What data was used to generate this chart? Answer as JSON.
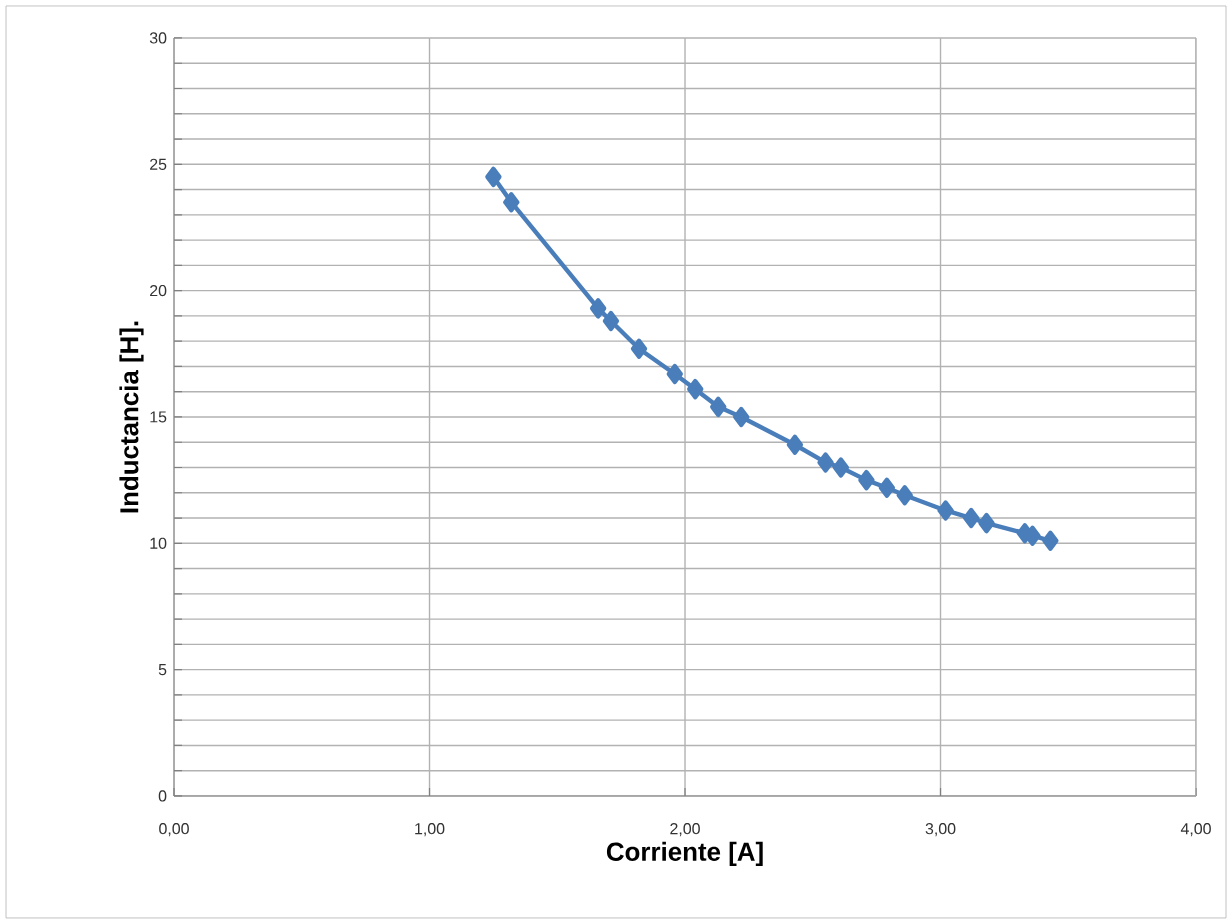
{
  "chart_data": {
    "type": "line",
    "xlabel": "Corriente [A]",
    "ylabel": "Inductancia [H].",
    "x": [
      1.25,
      1.32,
      1.66,
      1.71,
      1.82,
      1.96,
      2.04,
      2.13,
      2.22,
      2.43,
      2.55,
      2.61,
      2.71,
      2.79,
      2.86,
      3.02,
      3.12,
      3.18,
      3.33,
      3.36,
      3.43
    ],
    "series": [
      {
        "color": "#4a7ebb",
        "values": [
          24.5,
          23.5,
          19.3,
          18.8,
          17.7,
          16.7,
          16.1,
          15.4,
          15.0,
          13.9,
          13.2,
          13.0,
          12.5,
          12.2,
          11.9,
          11.3,
          11.0,
          10.8,
          10.4,
          10.3,
          10.1
        ]
      }
    ],
    "xlim": [
      0,
      4
    ],
    "ylim": [
      0,
      30
    ],
    "xticks": [
      {
        "value": 0,
        "label": "0,00"
      },
      {
        "value": 1,
        "label": "1,00"
      },
      {
        "value": 2,
        "label": "2,00"
      },
      {
        "value": 3,
        "label": "3,00"
      },
      {
        "value": 4,
        "label": "4,00"
      }
    ],
    "yticks": [
      0,
      {
        "value": 1,
        "label": null
      },
      {
        "value": 2,
        "label": null
      },
      {
        "value": 3,
        "label": null
      },
      {
        "value": 4,
        "label": null
      },
      5,
      {
        "value": 6,
        "label": null
      },
      {
        "value": 7,
        "label": null
      },
      {
        "value": 8,
        "label": null
      },
      {
        "value": 9,
        "label": null
      },
      10,
      {
        "value": 11,
        "label": null
      },
      {
        "value": 12,
        "label": null
      },
      {
        "value": 13,
        "label": null
      },
      {
        "value": 14,
        "label": null
      },
      15,
      {
        "value": 16,
        "label": null
      },
      {
        "value": 17,
        "label": null
      },
      {
        "value": 18,
        "label": null
      },
      {
        "value": 19,
        "label": null
      },
      20,
      {
        "value": 21,
        "label": null
      },
      {
        "value": 22,
        "label": null
      },
      {
        "value": 23,
        "label": null
      },
      {
        "value": 24,
        "label": null
      },
      25,
      {
        "value": 26,
        "label": null
      },
      {
        "value": 27,
        "label": null
      },
      {
        "value": 28,
        "label": null
      },
      {
        "value": 29,
        "label": null
      },
      30
    ],
    "grid": true,
    "marker": "diamond",
    "line_style": "solid"
  }
}
